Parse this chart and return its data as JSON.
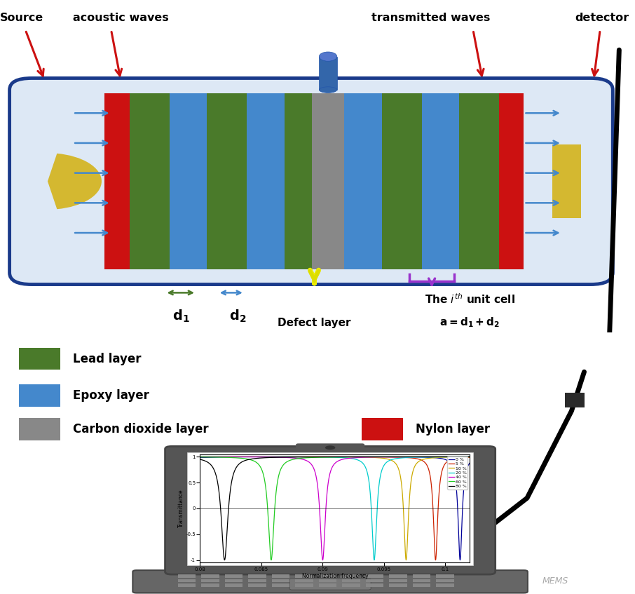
{
  "bg_color": "#ffffff",
  "box_color": "#1a3a8a",
  "box_fill": "#dde8f5",
  "layer_sequence": [
    "red",
    "green",
    "blue",
    "green",
    "blue",
    "green",
    "gray",
    "blue",
    "green",
    "blue",
    "green",
    "red"
  ],
  "layer_colors": {
    "red": "#cc1111",
    "green": "#4a7a2a",
    "blue": "#4488cc",
    "gray": "#888888"
  },
  "layer_widths": [
    0.05,
    0.08,
    0.075,
    0.08,
    0.075,
    0.055,
    0.065,
    0.075,
    0.08,
    0.075,
    0.08,
    0.05
  ],
  "source_color": "#d4b830",
  "detector_color": "#d4b830",
  "arrow_color": "#4488cc",
  "red_arrow_color": "#cc1111",
  "legend_items": [
    {
      "label": "Lead layer",
      "color": "#4a7a2a"
    },
    {
      "label": "Epoxy layer",
      "color": "#4488cc"
    },
    {
      "label": "Carbon dioxide layer",
      "color": "#888888"
    },
    {
      "label": "Nylon layer",
      "color": "#cc1111"
    }
  ],
  "plot_colors": [
    "#000099",
    "#cc2200",
    "#ccaa00",
    "#00cccc",
    "#cc00cc",
    "#22cc22",
    "#000000"
  ],
  "plot_labels": [
    "0 %",
    "5 %",
    "10 %",
    "20 %",
    "40 %",
    "60 %",
    "80 %"
  ],
  "plot_resonances": [
    0.1012,
    0.0992,
    0.0968,
    0.0942,
    0.09,
    0.0858,
    0.082
  ],
  "plot_gammas": [
    0.0004,
    0.00042,
    0.00045,
    0.00048,
    0.00052,
    0.00058,
    0.00065
  ],
  "xlabel": "Normalization frequency",
  "ylabel": "Transmittance",
  "xmin": 0.08,
  "xmax": 0.102,
  "ymin": -1.0,
  "ymax": 1.0
}
